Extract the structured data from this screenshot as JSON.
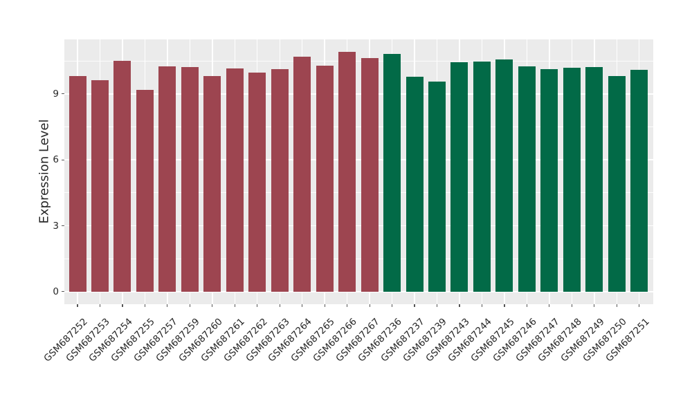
{
  "chart_data": {
    "type": "bar",
    "title": "",
    "xlabel": "",
    "ylabel": "Expression Level",
    "categories": [
      "GSM687252",
      "GSM687253",
      "GSM687254",
      "GSM687255",
      "GSM687257",
      "GSM687259",
      "GSM687260",
      "GSM687261",
      "GSM687262",
      "GSM687263",
      "GSM687264",
      "GSM687265",
      "GSM687266",
      "GSM687267",
      "GSM687236",
      "GSM687237",
      "GSM687239",
      "GSM687243",
      "GSM687244",
      "GSM687245",
      "GSM687246",
      "GSM687247",
      "GSM687248",
      "GSM687249",
      "GSM687250",
      "GSM687251"
    ],
    "values": [
      9.8,
      9.62,
      10.49,
      9.17,
      10.26,
      10.21,
      9.8,
      10.15,
      9.97,
      10.13,
      10.69,
      10.3,
      10.92,
      10.63,
      10.83,
      9.77,
      9.56,
      10.43,
      10.47,
      10.58,
      10.25,
      10.14,
      10.19,
      10.23,
      9.8,
      10.08
    ],
    "bar_colors": [
      "#9D4550",
      "#9D4550",
      "#9D4550",
      "#9D4550",
      "#9D4550",
      "#9D4550",
      "#9D4550",
      "#9D4550",
      "#9D4550",
      "#9D4550",
      "#9D4550",
      "#9D4550",
      "#9D4550",
      "#9D4550",
      "#026A47",
      "#026A47",
      "#026A47",
      "#026A47",
      "#026A47",
      "#026A47",
      "#026A47",
      "#026A47",
      "#026A47",
      "#026A47",
      "#026A47",
      "#026A47"
    ],
    "group_colors": {
      "left_group_red": "#9D4550",
      "right_group_green": "#026A47"
    },
    "yticks": [
      0,
      3,
      6,
      9
    ],
    "yticks_minor": [
      1.5,
      4.5,
      7.5,
      10.5
    ],
    "ylim": [
      -0.57,
      11.48
    ],
    "grid": true,
    "legend_position": "none",
    "panel_background": "#EBEBEB",
    "grid_color": "#FFFFFF",
    "x_tick_label_rotation_deg": 45
  }
}
